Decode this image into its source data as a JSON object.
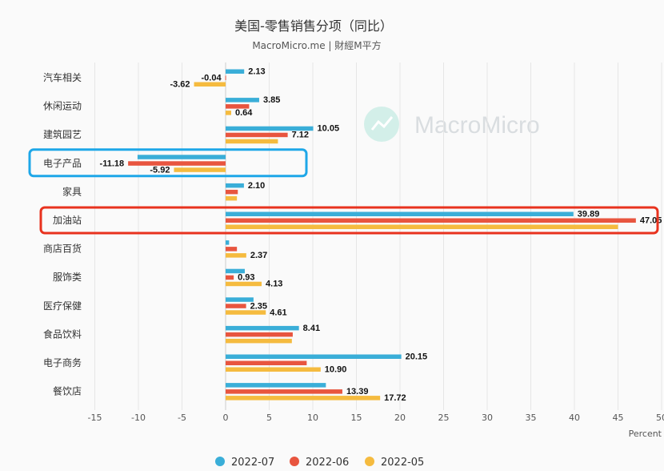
{
  "chart_data": {
    "type": "bar",
    "orientation": "horizontal",
    "title": "美国-零售销售分项（同比）",
    "subtitle": "MacroMicro.me | 財經M平方",
    "watermark": "MacroMicro",
    "xlabel": "Percent",
    "xlim": [
      -15,
      50
    ],
    "xticks": [
      -15,
      -10,
      -5,
      0,
      5,
      10,
      15,
      20,
      25,
      30,
      35,
      40,
      45,
      50
    ],
    "grid": true,
    "legend_position": "bottom",
    "categories": [
      "汽车相关",
      "休闲运动",
      "建筑园艺",
      "电子产品",
      "家具",
      "加油站",
      "商店百货",
      "服饰类",
      "医疗保健",
      "食品饮料",
      "电子商务",
      "餐饮店"
    ],
    "series": [
      {
        "name": "2022-07",
        "color": "#3aaed8",
        "values": [
          2.13,
          3.85,
          10.05,
          -10.1,
          2.1,
          39.89,
          0.4,
          2.2,
          3.2,
          8.41,
          20.15,
          11.5
        ],
        "labels": [
          "2.13",
          "3.85",
          "10.05",
          null,
          "2.10",
          "39.89",
          null,
          null,
          null,
          "8.41",
          "20.15",
          null
        ]
      },
      {
        "name": "2022-06",
        "color": "#e8553f",
        "values": [
          -0.04,
          2.7,
          7.12,
          -11.18,
          1.4,
          47.05,
          1.3,
          0.93,
          2.35,
          7.7,
          9.3,
          13.39
        ],
        "labels": [
          "-0.04",
          null,
          "7.12",
          "-11.18",
          null,
          "47.05",
          null,
          "0.93",
          "2.35",
          null,
          null,
          "13.39"
        ]
      },
      {
        "name": "2022-05",
        "color": "#f5bb3f",
        "values": [
          -3.62,
          0.64,
          6.0,
          -5.92,
          1.3,
          45.0,
          2.37,
          4.13,
          4.61,
          7.6,
          10.9,
          17.72
        ],
        "labels": [
          "-3.62",
          "0.64",
          null,
          "-5.92",
          null,
          null,
          "2.37",
          "4.13",
          "4.61",
          null,
          "10.90",
          "17.72"
        ]
      }
    ],
    "highlights": [
      {
        "category": "电子产品",
        "color": "#1ea7e8"
      },
      {
        "category": "加油站",
        "color": "#e8321e"
      }
    ]
  }
}
